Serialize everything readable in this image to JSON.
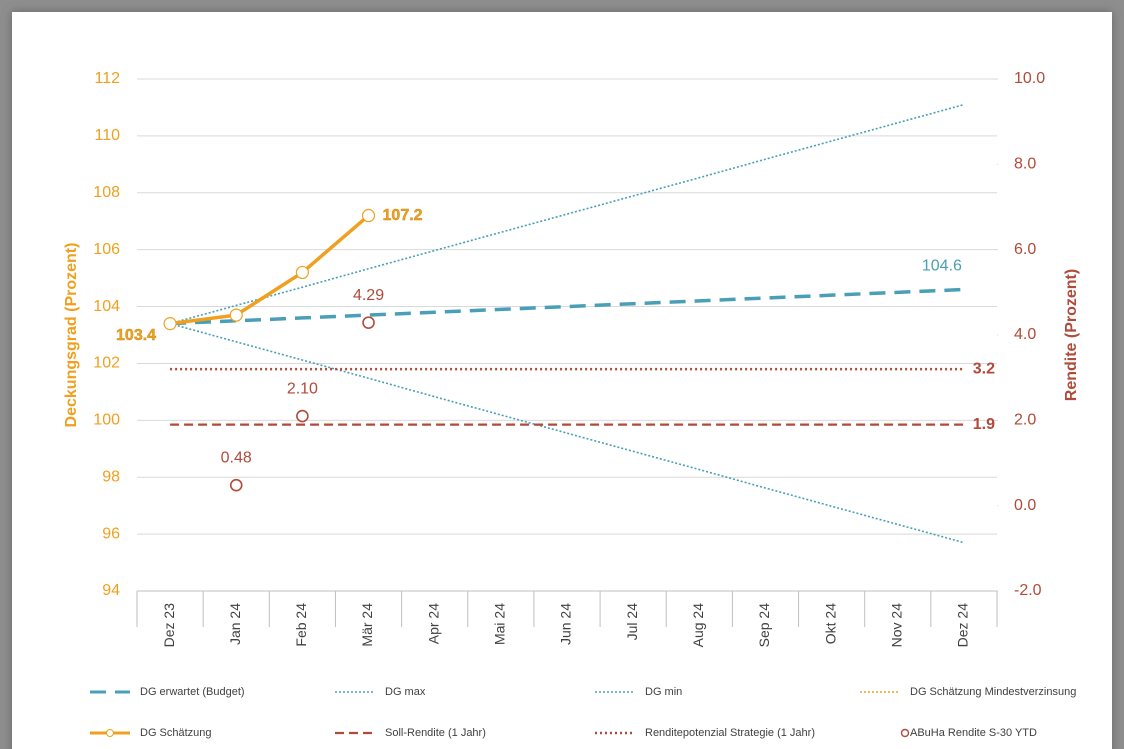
{
  "chart_data": {
    "type": "line",
    "categories": [
      "Dez 23",
      "Jan 24",
      "Feb 24",
      "Mär 24",
      "Apr 24",
      "Mai 24",
      "Jun 24",
      "Jul 24",
      "Aug 24",
      "Sep 24",
      "Okt 24",
      "Nov 24",
      "Dez 24"
    ],
    "ylabel": "Deckungsgrad (Prozent)",
    "y2label": "Rendite (Prozent)",
    "ylim": [
      94,
      112
    ],
    "yticks": [
      94,
      96,
      98,
      100,
      102,
      104,
      106,
      108,
      110,
      112
    ],
    "y2lim": [
      -2,
      10
    ],
    "y2ticks": [
      {
        "value": -2,
        "label": "-2.0"
      },
      {
        "value": 0,
        "label": "0.0"
      },
      {
        "value": 2,
        "label": "2.0"
      },
      {
        "value": 4,
        "label": "4.0"
      },
      {
        "value": 6,
        "label": "6.0"
      },
      {
        "value": 8,
        "label": "8.0"
      },
      {
        "value": 10,
        "label": "10.0"
      }
    ],
    "ycolor": "#f0a01e",
    "y2color": "#b04a3a",
    "grid": true,
    "legend": "bottom",
    "series": [
      {
        "name": "DG erwartet (Budget)",
        "color": "#4a9fb8",
        "style": "dashed",
        "data_labels": "last",
        "values": [
          103.4,
          103.5,
          103.6,
          103.7,
          103.8,
          103.9,
          104.0,
          104.1,
          104.2,
          104.3,
          104.4,
          104.5,
          104.6
        ]
      },
      {
        "name": "DG max",
        "color": "#4a9fb8",
        "style": "dotted",
        "values": [
          103.4,
          104.04,
          104.68,
          105.33,
          105.97,
          106.61,
          107.25,
          107.89,
          108.53,
          109.18,
          109.82,
          110.46,
          111.1
        ]
      },
      {
        "name": "DG min",
        "color": "#4a9fb8",
        "style": "dotted",
        "values": [
          103.4,
          102.76,
          102.12,
          101.48,
          100.83,
          100.19,
          99.55,
          98.91,
          98.27,
          97.62,
          96.98,
          96.34,
          95.7
        ]
      },
      {
        "name": "DG Schätzung Mindestverzinsung",
        "color": "#f0a01e",
        "style": "dotted",
        "values": [
          103.4,
          103.7,
          105.2,
          107.2,
          null,
          null,
          null,
          null,
          null,
          null,
          null,
          null,
          null
        ]
      },
      {
        "name": "DG Schätzung",
        "color": "#f0a01e",
        "style": "solid-markers",
        "data_labels": "ends",
        "values": [
          103.4,
          103.7,
          105.2,
          107.2,
          null,
          null,
          null,
          null,
          null,
          null,
          null,
          null,
          null
        ]
      },
      {
        "name": "Soll-Rendite (1 Jahr)",
        "color": "#b04a3a",
        "style": "dashed",
        "axis": "y2",
        "data_labels": "last",
        "values": [
          1.9,
          1.9,
          1.9,
          1.9,
          1.9,
          1.9,
          1.9,
          1.9,
          1.9,
          1.9,
          1.9,
          1.9,
          1.9
        ]
      },
      {
        "name": "Renditepotenzial Strategie (1 Jahr)",
        "color": "#b04a3a",
        "style": "dotted",
        "axis": "y2",
        "data_labels": "last",
        "values": [
          3.2,
          3.2,
          3.2,
          3.2,
          3.2,
          3.2,
          3.2,
          3.2,
          3.2,
          3.2,
          3.2,
          3.2,
          3.2
        ]
      },
      {
        "name": "ABuHa Rendite S-30 YTD",
        "color": "#b04a3a",
        "style": "markers",
        "axis": "y2",
        "data_labels": "all",
        "values": [
          null,
          0.48,
          2.1,
          4.29,
          null,
          null,
          null,
          null,
          null,
          null,
          null,
          null,
          null
        ],
        "value_labels": [
          null,
          "0.48",
          "2.10",
          "4.29",
          null,
          null,
          null,
          null,
          null,
          null,
          null,
          null,
          null
        ]
      }
    ]
  }
}
